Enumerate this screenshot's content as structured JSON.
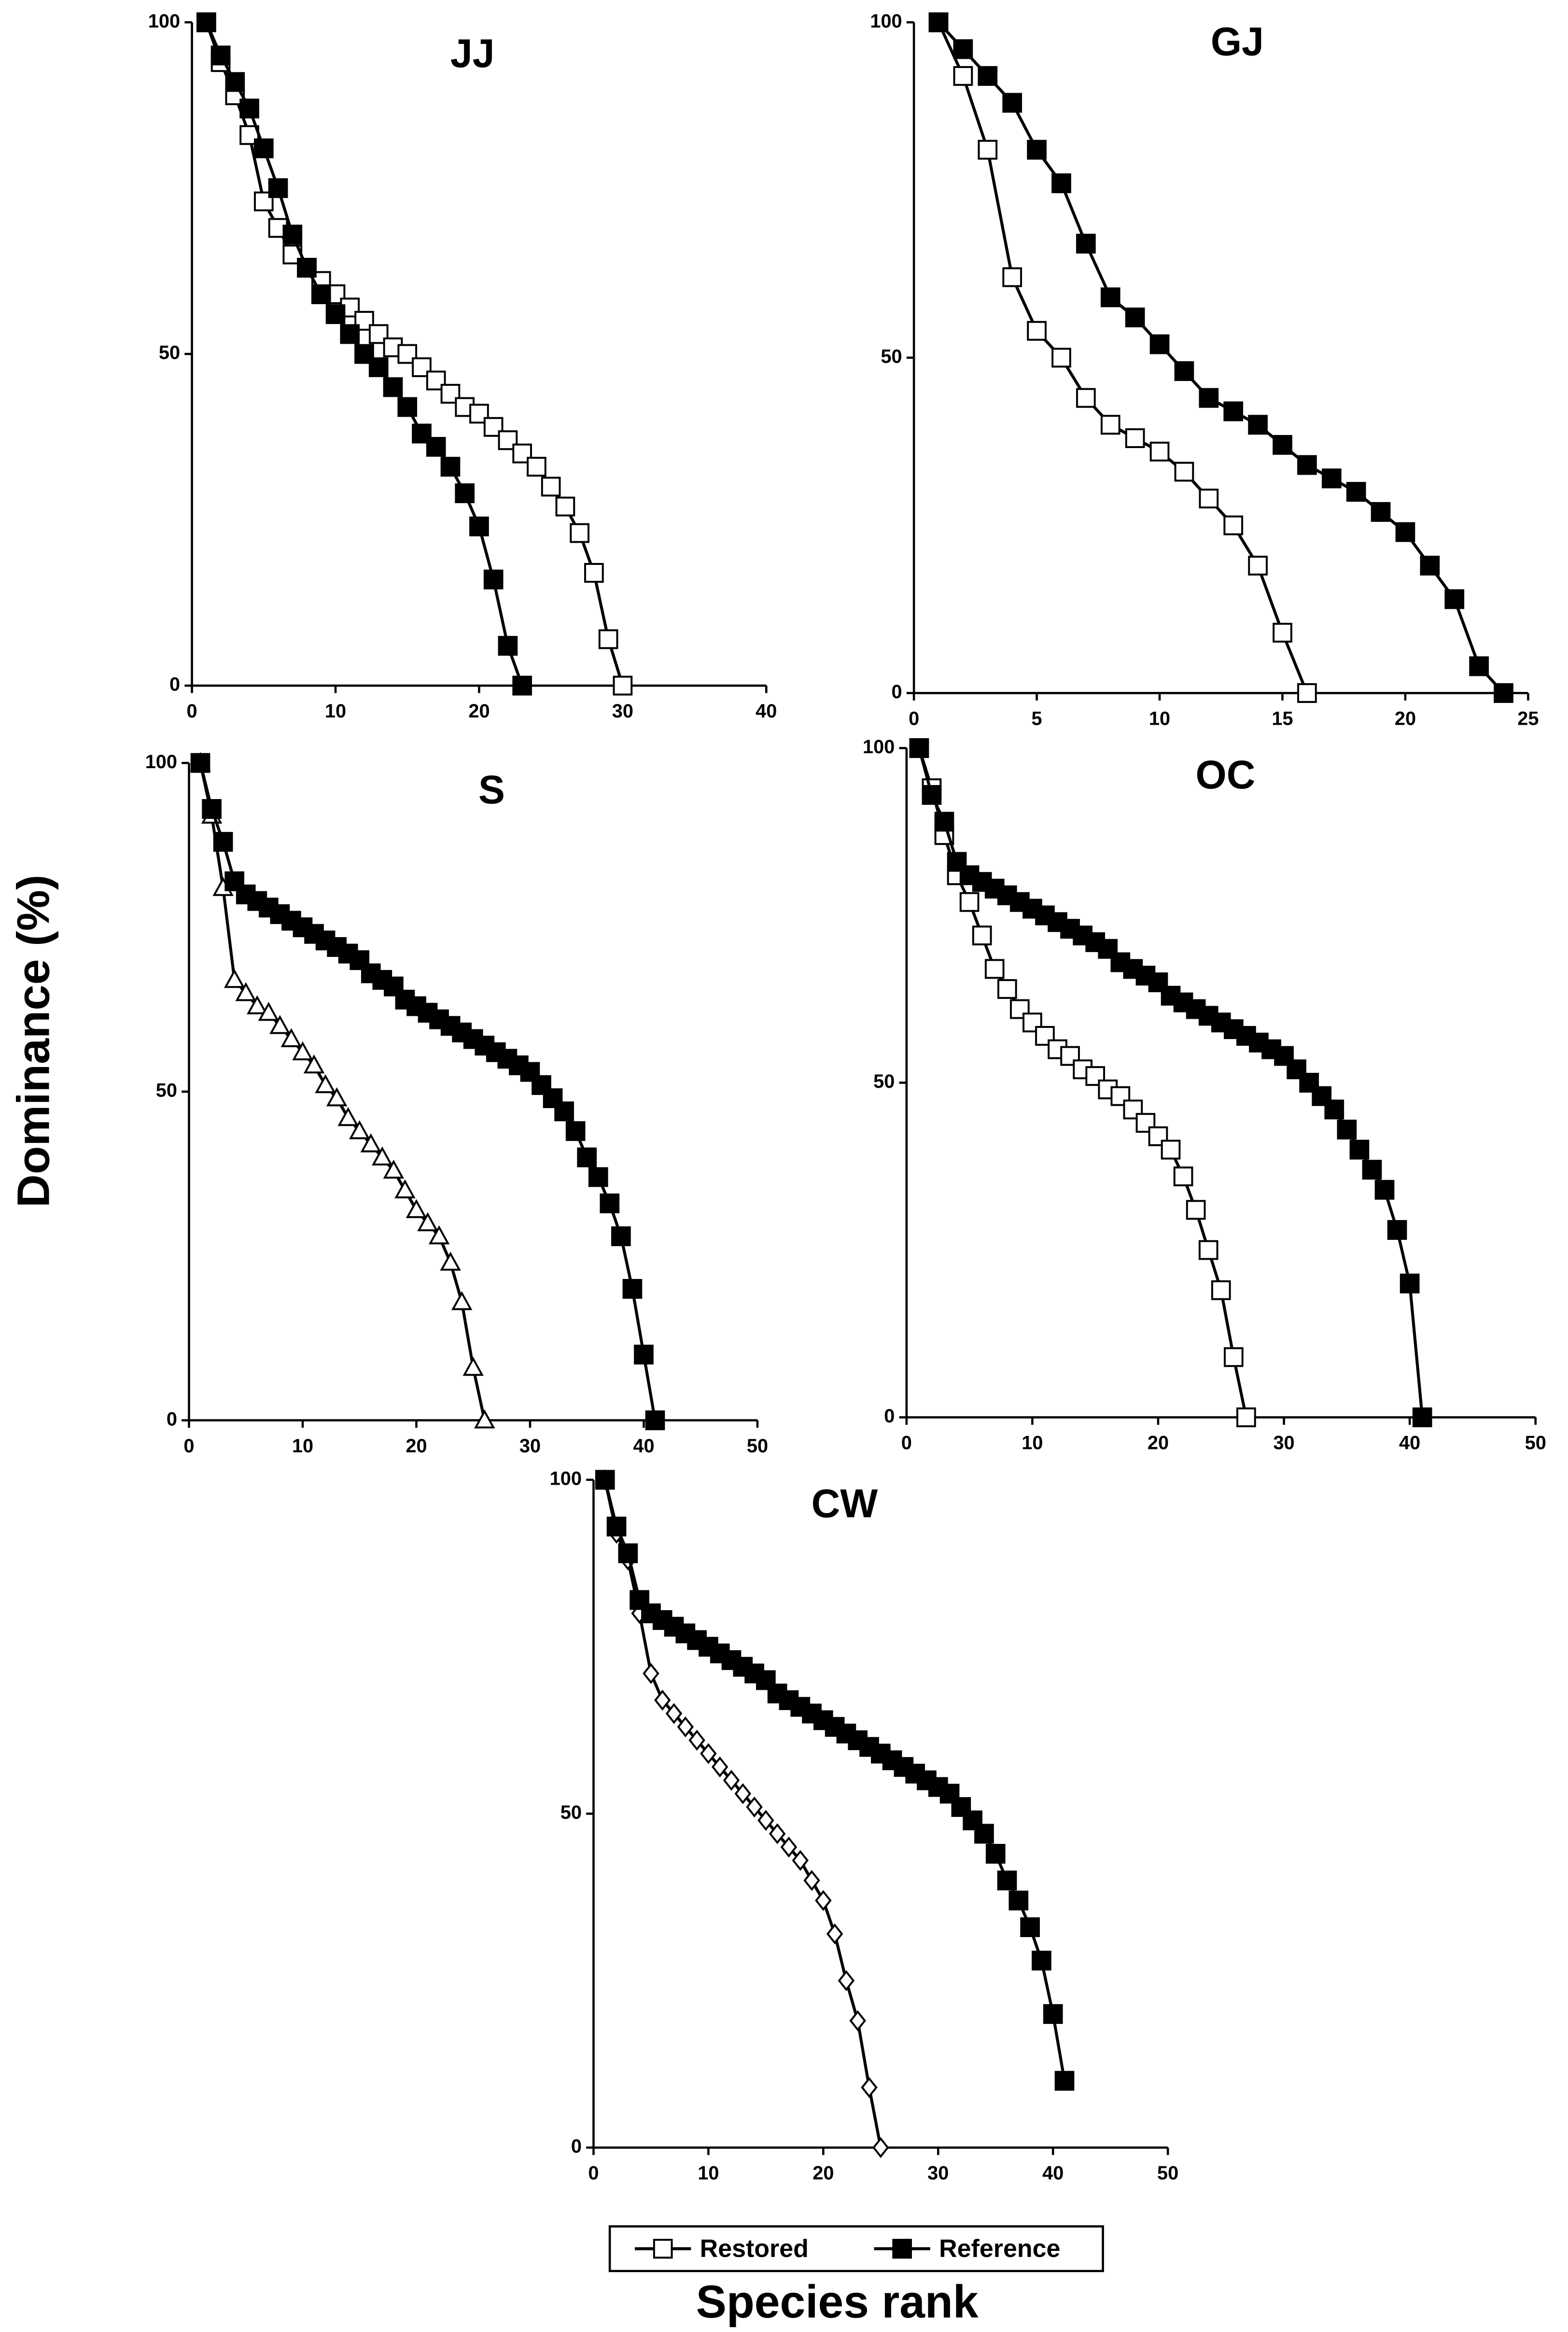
{
  "figure": {
    "ylabel": "Dominance (%)",
    "xlabel": "Species rank"
  },
  "chart_data": [
    {
      "type": "line",
      "title": "JJ",
      "xlim": [
        0,
        40
      ],
      "xticks": [
        0,
        10,
        20,
        30,
        40
      ],
      "ylim": [
        0,
        100
      ],
      "yticks": [
        0,
        50,
        100
      ],
      "series": [
        {
          "name": "Restored",
          "color": "#000000",
          "marker": "square",
          "filled": false,
          "x": [
            1,
            2,
            3,
            4,
            5,
            6,
            7,
            8,
            9,
            10,
            11,
            12,
            13,
            14,
            15,
            16,
            17,
            18,
            19,
            20,
            21,
            22,
            23,
            24,
            25,
            26,
            27,
            28,
            29,
            30
          ],
          "values": [
            100,
            94,
            89,
            83,
            73,
            69,
            65,
            63,
            61,
            59,
            57,
            55,
            53,
            51,
            50,
            48,
            46,
            44,
            42,
            41,
            39,
            37,
            35,
            33,
            30,
            27,
            23,
            17,
            7,
            0
          ]
        },
        {
          "name": "Reference",
          "color": "#000000",
          "marker": "square",
          "filled": true,
          "x": [
            1,
            2,
            3,
            4,
            5,
            6,
            7,
            8,
            9,
            10,
            11,
            12,
            13,
            14,
            15,
            16,
            17,
            18,
            19,
            20,
            21,
            22,
            23
          ],
          "values": [
            100,
            95,
            91,
            87,
            81,
            75,
            68,
            63,
            59,
            56,
            53,
            50,
            48,
            45,
            42,
            38,
            36,
            33,
            29,
            24,
            16,
            6,
            0
          ]
        }
      ]
    },
    {
      "type": "line",
      "title": "GJ",
      "xlim": [
        0,
        25
      ],
      "xticks": [
        0,
        5,
        10,
        15,
        20,
        25
      ],
      "ylim": [
        0,
        100
      ],
      "yticks": [
        0,
        50,
        100
      ],
      "series": [
        {
          "name": "Restored",
          "color": "#000000",
          "marker": "square",
          "filled": false,
          "x": [
            1,
            2,
            3,
            4,
            5,
            6,
            7,
            8,
            9,
            10,
            11,
            12,
            13,
            14,
            15,
            16
          ],
          "values": [
            100,
            92,
            81,
            62,
            54,
            50,
            44,
            40,
            38,
            36,
            33,
            29,
            25,
            19,
            9,
            0
          ]
        },
        {
          "name": "Reference",
          "color": "#000000",
          "marker": "square",
          "filled": true,
          "x": [
            1,
            2,
            3,
            4,
            5,
            6,
            7,
            8,
            9,
            10,
            11,
            12,
            13,
            14,
            15,
            16,
            17,
            18,
            19,
            20,
            21,
            22,
            23,
            24
          ],
          "values": [
            100,
            96,
            92,
            88,
            81,
            76,
            67,
            59,
            56,
            52,
            48,
            44,
            42,
            40,
            37,
            34,
            32,
            30,
            27,
            24,
            19,
            14,
            4,
            0
          ]
        }
      ]
    },
    {
      "type": "line",
      "title": "S",
      "xlim": [
        0,
        50
      ],
      "xticks": [
        0,
        10,
        20,
        30,
        40,
        50
      ],
      "ylim": [
        0,
        100
      ],
      "yticks": [
        0,
        50,
        100
      ],
      "series": [
        {
          "name": "Restored",
          "color": "#000000",
          "marker": "triangle",
          "filled": false,
          "x": [
            1,
            2,
            3,
            4,
            5,
            6,
            7,
            8,
            9,
            10,
            11,
            12,
            13,
            14,
            15,
            16,
            17,
            18,
            19,
            20,
            21,
            22,
            23,
            24,
            25,
            26
          ],
          "values": [
            100,
            92,
            81,
            67,
            65,
            63,
            62,
            60,
            58,
            56,
            54,
            51,
            49,
            46,
            44,
            42,
            40,
            38,
            35,
            32,
            30,
            28,
            24,
            18,
            8,
            0
          ]
        },
        {
          "name": "Reference",
          "color": "#000000",
          "marker": "square",
          "filled": true,
          "x": [
            1,
            2,
            3,
            4,
            5,
            6,
            7,
            8,
            9,
            10,
            11,
            12,
            13,
            14,
            15,
            16,
            17,
            18,
            19,
            20,
            21,
            22,
            23,
            24,
            25,
            26,
            27,
            28,
            29,
            30,
            31,
            32,
            33,
            34,
            35,
            36,
            37,
            38,
            39,
            40,
            41
          ],
          "values": [
            100,
            93,
            88,
            82,
            80,
            79,
            78,
            77,
            76,
            75,
            74,
            73,
            72,
            71,
            70,
            68,
            67,
            66,
            64,
            63,
            62,
            61,
            60,
            59,
            58,
            57,
            56,
            55,
            54,
            53,
            51,
            49,
            47,
            44,
            40,
            37,
            33,
            28,
            20,
            10,
            0
          ]
        }
      ]
    },
    {
      "type": "line",
      "title": "OC",
      "xlim": [
        0,
        50
      ],
      "xticks": [
        0,
        10,
        20,
        30,
        40,
        50
      ],
      "ylim": [
        0,
        100
      ],
      "yticks": [
        0,
        50,
        100
      ],
      "series": [
        {
          "name": "Restored",
          "color": "#000000",
          "marker": "square",
          "filled": false,
          "x": [
            1,
            2,
            3,
            4,
            5,
            6,
            7,
            8,
            9,
            10,
            11,
            12,
            13,
            14,
            15,
            16,
            17,
            18,
            19,
            20,
            21,
            22,
            23,
            24,
            25,
            26,
            27
          ],
          "values": [
            100,
            94,
            87,
            81,
            77,
            72,
            67,
            64,
            61,
            59,
            57,
            55,
            54,
            52,
            51,
            49,
            48,
            46,
            44,
            42,
            40,
            36,
            31,
            25,
            19,
            9,
            0
          ]
        },
        {
          "name": "Reference",
          "color": "#000000",
          "marker": "square",
          "filled": true,
          "x": [
            1,
            2,
            3,
            4,
            5,
            6,
            7,
            8,
            9,
            10,
            11,
            12,
            13,
            14,
            15,
            16,
            17,
            18,
            19,
            20,
            21,
            22,
            23,
            24,
            25,
            26,
            27,
            28,
            29,
            30,
            31,
            32,
            33,
            34,
            35,
            36,
            37,
            38,
            39,
            40,
            41
          ],
          "values": [
            100,
            93,
            89,
            83,
            81,
            80,
            79,
            78,
            77,
            76,
            75,
            74,
            73,
            72,
            71,
            70,
            68,
            67,
            66,
            65,
            63,
            62,
            61,
            60,
            59,
            58,
            57,
            56,
            55,
            54,
            52,
            50,
            48,
            46,
            43,
            40,
            37,
            34,
            28,
            20,
            0
          ]
        }
      ]
    },
    {
      "type": "line",
      "title": "CW",
      "xlim": [
        0,
        50
      ],
      "xticks": [
        0,
        10,
        20,
        30,
        40,
        50
      ],
      "ylim": [
        0,
        100
      ],
      "yticks": [
        0,
        50,
        100
      ],
      "series": [
        {
          "name": "Restored",
          "color": "#000000",
          "marker": "diamond",
          "filled": false,
          "x": [
            1,
            2,
            3,
            4,
            5,
            6,
            7,
            8,
            9,
            10,
            11,
            12,
            13,
            14,
            15,
            16,
            17,
            18,
            19,
            20,
            21,
            22,
            23,
            24,
            25
          ],
          "values": [
            100,
            92,
            88,
            80,
            71,
            67,
            65,
            63,
            61,
            59,
            57,
            55,
            53,
            51,
            49,
            47,
            45,
            43,
            40,
            37,
            32,
            25,
            19,
            9,
            0
          ]
        },
        {
          "name": "Reference",
          "color": "#000000",
          "marker": "square",
          "filled": true,
          "x": [
            1,
            2,
            3,
            4,
            5,
            6,
            7,
            8,
            9,
            10,
            11,
            12,
            13,
            14,
            15,
            16,
            17,
            18,
            19,
            20,
            21,
            22,
            23,
            24,
            25,
            26,
            27,
            28,
            29,
            30,
            31,
            32,
            33,
            34,
            35,
            36,
            37,
            38,
            39,
            40,
            41
          ],
          "values": [
            100,
            93,
            89,
            82,
            80,
            79,
            78,
            77,
            76,
            75,
            74,
            73,
            72,
            71,
            70,
            68,
            67,
            66,
            65,
            64,
            63,
            62,
            61,
            60,
            59,
            58,
            57,
            56,
            55,
            54,
            53,
            51,
            49,
            47,
            44,
            40,
            37,
            33,
            28,
            20,
            10
          ]
        }
      ]
    }
  ]
}
